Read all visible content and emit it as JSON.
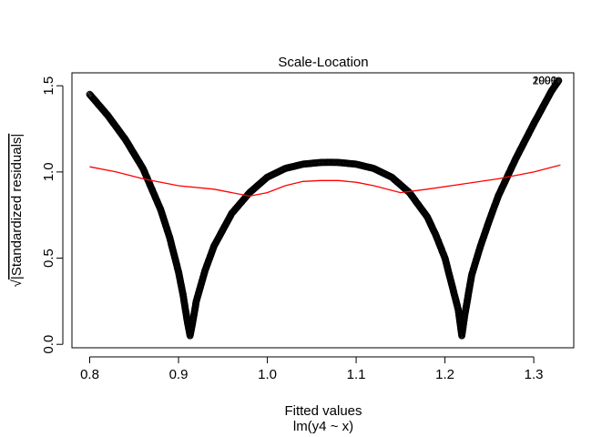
{
  "chart_data": {
    "type": "scatter",
    "title": "Scale-Location",
    "xlabel": "Fitted values",
    "xlabel_sub": "lm(y4 ~ x)",
    "ylabel_prefix": "√",
    "ylabel": "|Standardized residuals|",
    "xlim": [
      0.78,
      1.345
    ],
    "ylim": [
      -0.02,
      1.575
    ],
    "x_ticks": [
      {
        "value": 0.8,
        "label": "0.8"
      },
      {
        "value": 0.9,
        "label": "0.9"
      },
      {
        "value": 1.0,
        "label": "1.0"
      },
      {
        "value": 1.1,
        "label": "1.1"
      },
      {
        "value": 1.2,
        "label": "1.2"
      },
      {
        "value": 1.3,
        "label": "1.3"
      }
    ],
    "y_ticks": [
      {
        "value": 0.0,
        "label": "0.0"
      },
      {
        "value": 0.5,
        "label": "0.5"
      },
      {
        "value": 1.0,
        "label": "1.0"
      },
      {
        "value": 1.5,
        "label": "1.5"
      }
    ],
    "point_color": "#000000",
    "smooth_color": "#ff0000",
    "series": [
      {
        "kind": "points",
        "x": [
          0.8,
          0.82,
          0.84,
          0.86,
          0.88,
          0.89,
          0.9,
          0.905,
          0.91,
          0.913,
          0.916,
          0.92,
          0.93,
          0.94,
          0.96,
          0.98,
          1.0,
          1.02,
          1.04,
          1.06,
          1.07,
          1.08,
          1.1,
          1.12,
          1.14,
          1.16,
          1.18,
          1.19,
          1.2,
          1.21,
          1.215,
          1.219,
          1.222,
          1.226,
          1.23,
          1.24,
          1.25,
          1.26,
          1.28,
          1.3,
          1.32,
          1.328
        ],
        "y": [
          1.45,
          1.33,
          1.19,
          1.02,
          0.78,
          0.62,
          0.42,
          0.29,
          0.13,
          0.05,
          0.13,
          0.25,
          0.43,
          0.57,
          0.76,
          0.88,
          0.97,
          1.02,
          1.045,
          1.055,
          1.056,
          1.055,
          1.045,
          1.02,
          0.97,
          0.88,
          0.74,
          0.63,
          0.5,
          0.3,
          0.2,
          0.05,
          0.16,
          0.28,
          0.4,
          0.57,
          0.72,
          0.86,
          1.08,
          1.28,
          1.47,
          1.53
        ]
      },
      {
        "kind": "smooth",
        "name": "",
        "x": [
          0.8,
          0.83,
          0.86,
          0.9,
          0.94,
          0.98,
          1.0,
          1.02,
          1.04,
          1.06,
          1.08,
          1.1,
          1.12,
          1.15,
          1.18,
          1.22,
          1.26,
          1.3,
          1.33
        ],
        "y": [
          1.03,
          1.0,
          0.96,
          0.92,
          0.9,
          0.86,
          0.88,
          0.92,
          0.945,
          0.95,
          0.95,
          0.94,
          0.92,
          0.88,
          0.9,
          0.93,
          0.96,
          1.0,
          1.04
        ]
      }
    ],
    "annotations": [
      {
        "x": 1.328,
        "y": 1.53,
        "label": "2001"
      },
      {
        "x": 1.328,
        "y": 1.53,
        "label": "2000"
      },
      {
        "x": 1.328,
        "y": 1.53,
        "label": "1999"
      }
    ]
  }
}
